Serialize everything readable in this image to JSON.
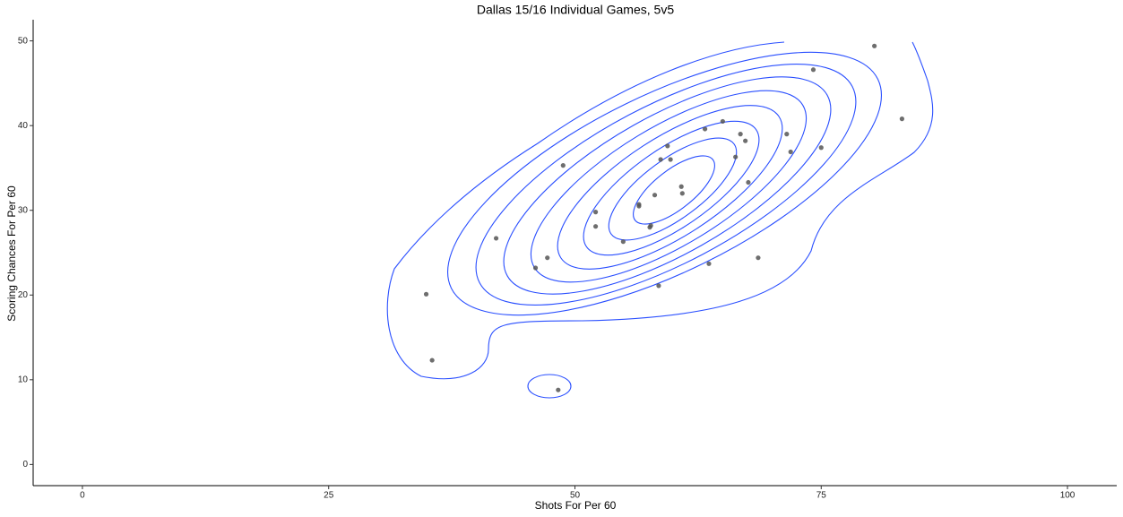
{
  "chart_data": {
    "type": "scatter",
    "title": "Dallas 15/16 Individual Games, 5v5",
    "x_label": "Shots For Per 60",
    "y_label": "Scoring Chances For Per 60",
    "xlim": [
      -5,
      105
    ],
    "ylim": [
      -2.5,
      52.5
    ],
    "xticks": [
      0,
      25,
      50,
      75,
      100
    ],
    "yticks": [
      0,
      10,
      20,
      30,
      40,
      50
    ],
    "color": "#555555",
    "x": [
      34.9,
      35.5,
      42.0,
      46.0,
      47.2,
      48.8,
      48.3,
      52.1,
      52.1,
      54.9,
      56.5,
      56.5,
      57.6,
      57.7,
      58.1,
      58.5,
      58.7,
      59.4,
      59.7,
      60.8,
      60.9,
      63.2,
      63.6,
      65.0,
      66.3,
      66.8,
      67.3,
      67.6,
      68.6,
      71.5,
      71.9,
      74.2,
      75.0,
      80.4,
      83.2
    ],
    "values": [
      20.1,
      12.3,
      26.7,
      23.2,
      24.4,
      35.3,
      8.8,
      29.8,
      28.1,
      26.3,
      30.7,
      30.5,
      28.0,
      28.2,
      31.8,
      21.1,
      36.0,
      37.6,
      36.0,
      32.8,
      32.0,
      39.6,
      23.7,
      40.5,
      36.3,
      39.0,
      38.2,
      33.3,
      24.4,
      39.0,
      36.9,
      46.6,
      37.4,
      49.4,
      40.8
    ]
  }
}
